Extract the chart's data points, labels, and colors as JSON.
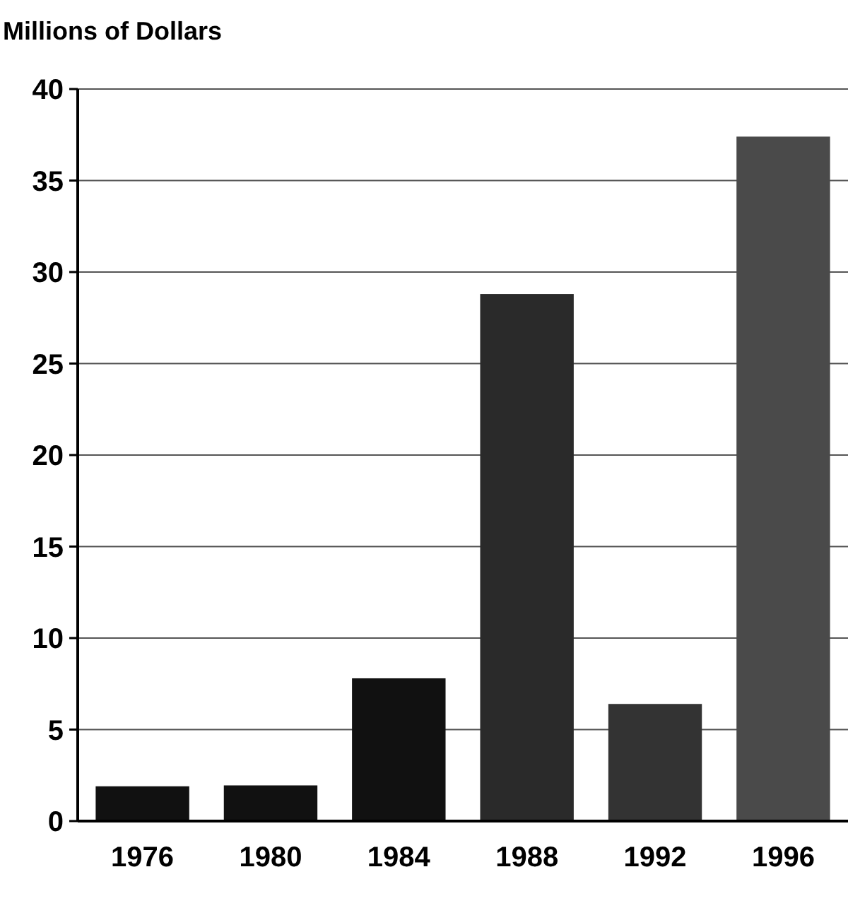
{
  "chart_data": {
    "type": "bar",
    "ylabel": "Millions of Dollars",
    "categories": [
      "1976",
      "1980",
      "1984",
      "1988",
      "1992",
      "1996"
    ],
    "values": [
      1.9,
      1.95,
      7.8,
      28.8,
      6.4,
      37.4
    ],
    "colors": [
      "#111111",
      "#111111",
      "#111111",
      "#2a2a2a",
      "#333333",
      "#4a4a4a"
    ],
    "ylim": [
      0,
      40
    ],
    "yticks": [
      0,
      5,
      10,
      15,
      20,
      25,
      30,
      35,
      40
    ],
    "grid": "y"
  }
}
